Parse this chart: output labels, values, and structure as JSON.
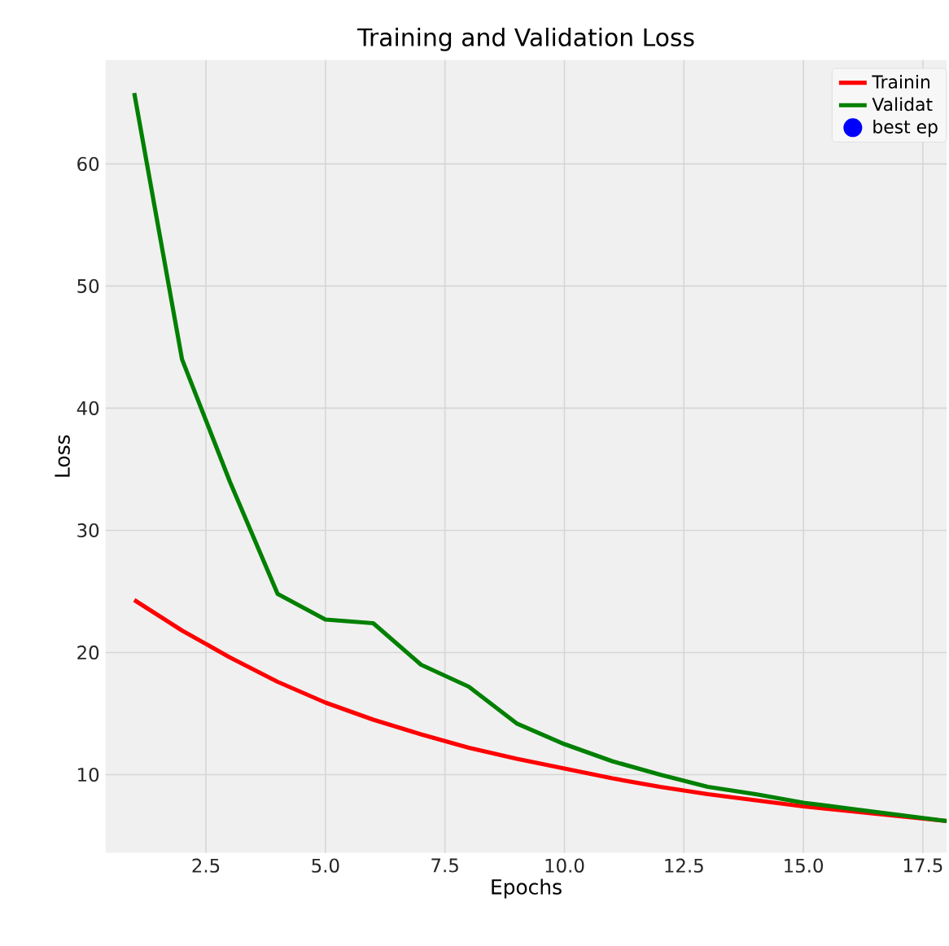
{
  "chart_data": {
    "type": "line",
    "title": "Training and Validation Loss",
    "xlabel": "Epochs",
    "ylabel": "Loss",
    "x": [
      1,
      2,
      3,
      4,
      5,
      6,
      7,
      8,
      9,
      10,
      11,
      12,
      13,
      14,
      15,
      16,
      17,
      18
    ],
    "series": [
      {
        "name": "Trainin",
        "color": "#ff0000",
        "values": [
          24.3,
          21.8,
          19.6,
          17.6,
          15.9,
          14.5,
          13.3,
          12.2,
          11.3,
          10.5,
          9.7,
          9.0,
          8.4,
          7.9,
          7.4,
          7.0,
          6.6,
          6.2
        ]
      },
      {
        "name": "Validat",
        "color": "#008000",
        "values": [
          65.8,
          44.0,
          34.0,
          24.8,
          22.7,
          22.4,
          19.0,
          17.2,
          14.2,
          12.5,
          11.1,
          10.0,
          9.0,
          8.4,
          7.7,
          7.2,
          6.7,
          6.2
        ]
      },
      {
        "name": "best ep",
        "type": "scatter",
        "marker": "circle",
        "color": "#0000ff",
        "values": [
          null,
          null,
          null,
          null,
          null,
          null,
          null,
          null,
          null,
          null,
          null,
          null,
          null,
          null,
          null,
          null,
          null,
          null
        ]
      }
    ],
    "xlim": [
      0.4,
      18.0
    ],
    "ylim": [
      3.6,
      68.5
    ],
    "xticks": [
      2.5,
      {
        "value": 5,
        "label": "5.0"
      },
      7.5,
      {
        "value": 10,
        "label": "10.0"
      },
      12.5,
      {
        "value": 15,
        "label": "15.0"
      },
      17.5
    ],
    "yticks": [
      10,
      20,
      30,
      40,
      50,
      60
    ],
    "grid": true,
    "legend": "top right"
  }
}
